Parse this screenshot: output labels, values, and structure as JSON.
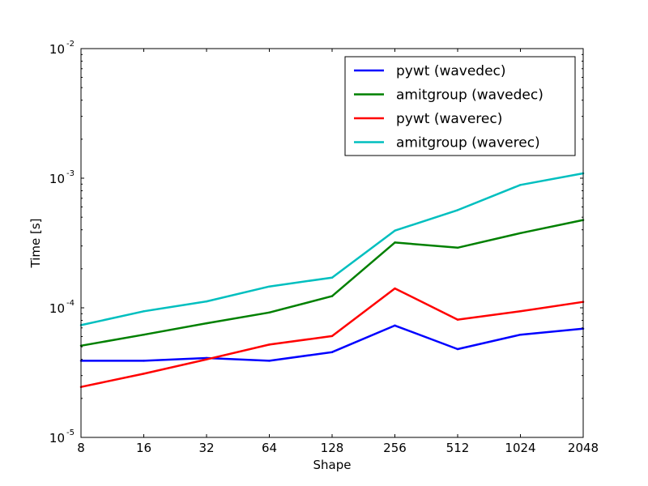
{
  "chart_data": {
    "type": "line",
    "title": "",
    "xlabel": "Shape",
    "ylabel": "Time [s]",
    "x_scale": "log2",
    "y_scale": "log10",
    "categories": [
      "8",
      "16",
      "32",
      "64",
      "128",
      "256",
      "512",
      "1024",
      "2048"
    ],
    "x": [
      8,
      16,
      32,
      64,
      128,
      256,
      512,
      1024,
      2048
    ],
    "xlim": [
      8,
      2048
    ],
    "ylim": [
      1e-05,
      0.01
    ],
    "y_ticks": [
      {
        "base": "10",
        "exp": "-5",
        "value": 1e-05
      },
      {
        "base": "10",
        "exp": "-4",
        "value": 0.0001
      },
      {
        "base": "10",
        "exp": "-3",
        "value": 0.001
      },
      {
        "base": "10",
        "exp": "-2",
        "value": 0.01
      }
    ],
    "grid": false,
    "legend_position": "top-right",
    "series": [
      {
        "name": "pywt (wavedec)",
        "color": "#0000ff",
        "values": [
          3.9e-05,
          3.9e-05,
          4.1e-05,
          3.9e-05,
          4.55e-05,
          7.3e-05,
          4.8e-05,
          6.2e-05,
          6.9e-05
        ]
      },
      {
        "name": "amitgroup (wavedec)",
        "color": "#008000",
        "values": [
          5.1e-05,
          6.2e-05,
          7.6e-05,
          9.2e-05,
          0.000123,
          0.000319,
          0.000291,
          0.000377,
          0.000476
        ]
      },
      {
        "name": "pywt (waverec)",
        "color": "#ff0000",
        "values": [
          2.45e-05,
          3.1e-05,
          4e-05,
          5.2e-05,
          6.05e-05,
          0.000141,
          8.1e-05,
          9.4e-05,
          0.000111
        ]
      },
      {
        "name": "amitgroup (waverec)",
        "color": "#00bfbf",
        "values": [
          7.35e-05,
          9.4e-05,
          0.000112,
          0.000146,
          0.000171,
          0.000394,
          0.000567,
          0.000888,
          0.00109
        ]
      }
    ]
  }
}
